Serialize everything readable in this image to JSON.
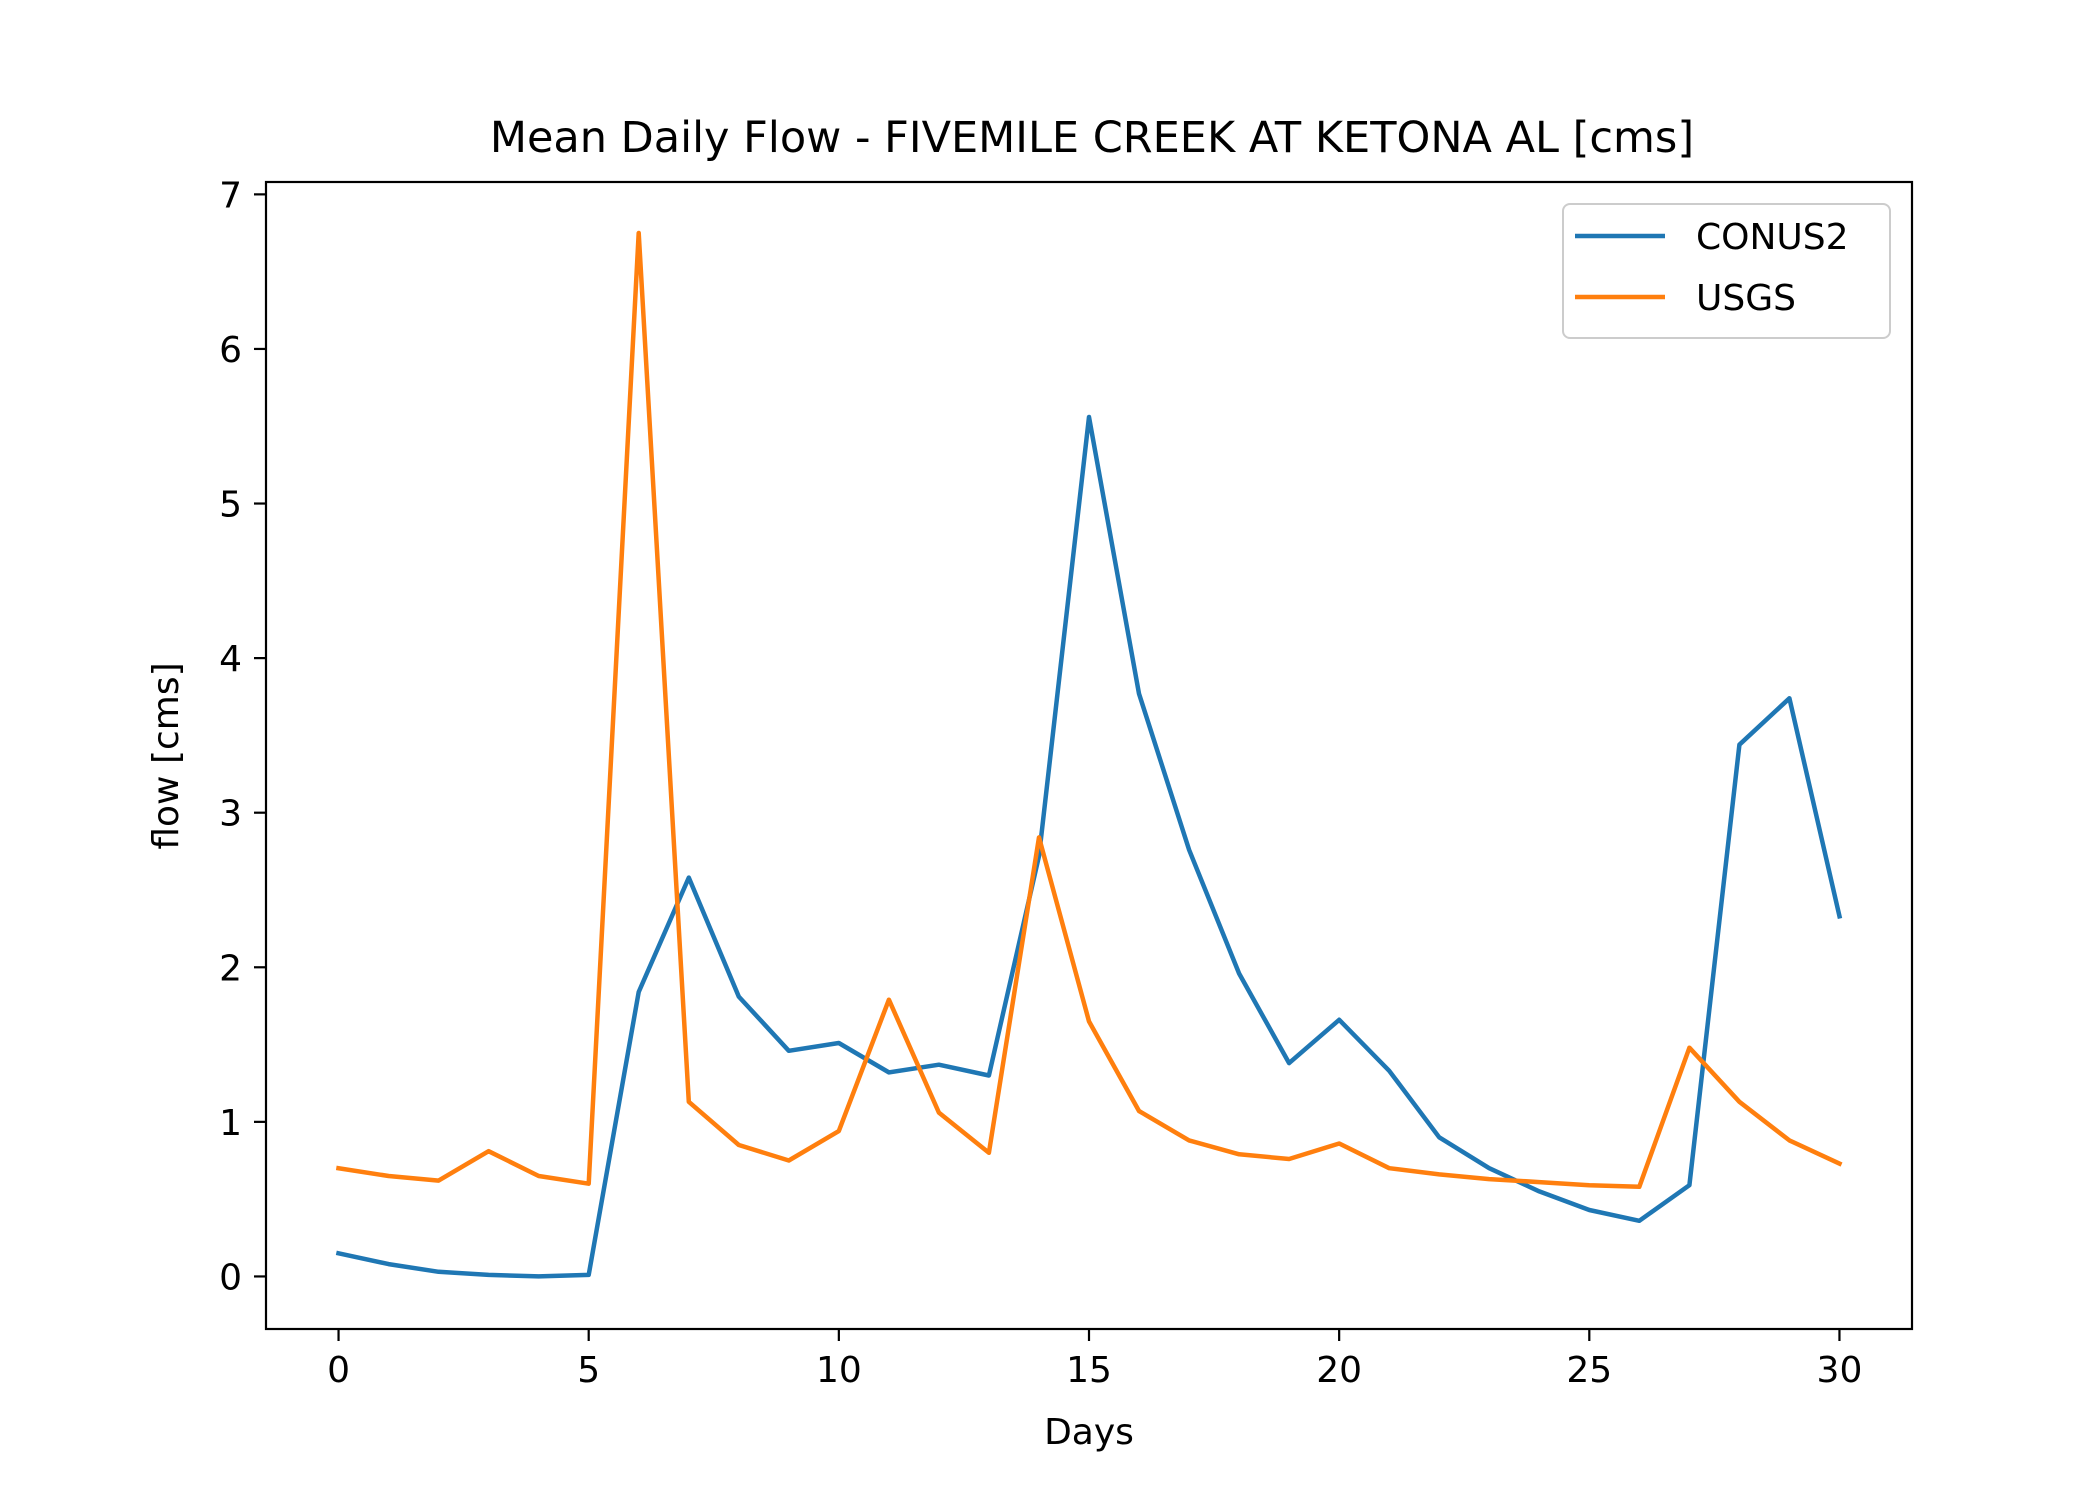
{
  "chart_data": {
    "type": "line",
    "title": "Mean Daily Flow - FIVEMILE CREEK AT KETONA AL [cms]",
    "xlabel": "Days",
    "ylabel": "flow [cms]",
    "xlim": [
      -1.45,
      31.45
    ],
    "ylim": [
      -0.34,
      7.08
    ],
    "xticks": [
      0,
      5,
      10,
      15,
      20,
      25,
      30
    ],
    "yticks": [
      0,
      1,
      2,
      3,
      4,
      5,
      6,
      7
    ],
    "grid": false,
    "legend_position": "upper right",
    "x": [
      0,
      1,
      2,
      3,
      4,
      5,
      6,
      7,
      8,
      9,
      10,
      11,
      12,
      13,
      14,
      15,
      16,
      17,
      18,
      19,
      20,
      21,
      22,
      23,
      24,
      25,
      26,
      27,
      28,
      29,
      30
    ],
    "series": [
      {
        "name": "CONUS2",
        "color": "#1f77b4",
        "values": [
          0.15,
          0.08,
          0.03,
          0.01,
          0.0,
          0.01,
          1.84,
          2.58,
          1.81,
          1.46,
          1.51,
          1.32,
          1.37,
          1.3,
          2.72,
          5.56,
          3.77,
          2.76,
          1.96,
          1.38,
          1.66,
          1.33,
          0.9,
          0.7,
          0.55,
          0.43,
          0.36,
          0.59,
          3.44,
          3.74,
          2.33
        ]
      },
      {
        "name": "USGS",
        "color": "#ff7f0e",
        "values": [
          0.7,
          0.65,
          0.62,
          0.81,
          0.65,
          0.6,
          6.75,
          1.13,
          0.85,
          0.75,
          0.94,
          1.79,
          1.06,
          0.8,
          2.84,
          1.65,
          1.07,
          0.88,
          0.79,
          0.76,
          0.86,
          0.7,
          0.66,
          0.63,
          0.61,
          0.59,
          0.58,
          1.48,
          1.13,
          0.88,
          0.73
        ]
      }
    ]
  }
}
